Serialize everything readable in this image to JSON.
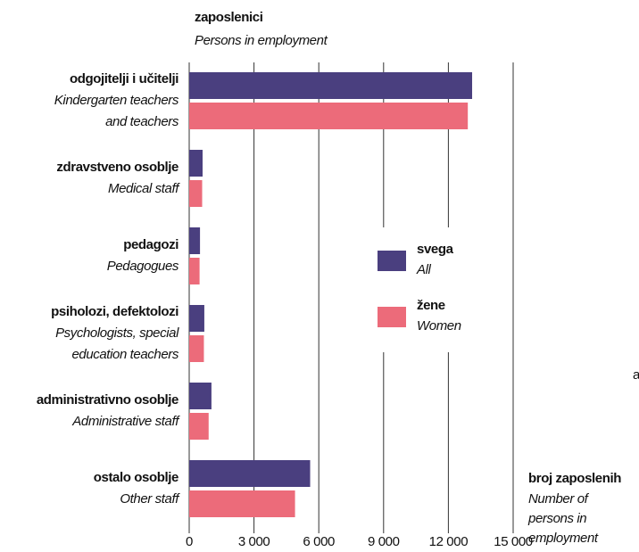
{
  "chart_data": {
    "type": "bar",
    "orientation": "horizontal",
    "title": "zaposlenici",
    "subtitle": "Persons in employment",
    "categories": [
      "odgojitelji i učitelji",
      "zdravstveno osoblje",
      "pedagozi",
      "psiholozi, defektolozi",
      "administrativno osoblje",
      "ostalo osoblje"
    ],
    "categories_en": [
      [
        "Kindergarten teachers",
        "and teachers"
      ],
      [
        "Medical staff"
      ],
      [
        "Pedagogues"
      ],
      [
        "Psychologists, special",
        "education teachers"
      ],
      [
        "Administrative staff"
      ],
      [
        "Other staff"
      ]
    ],
    "series": [
      {
        "name": "svega",
        "name_en": "All",
        "color": "#4a3f7f",
        "values": [
          13100,
          620,
          500,
          700,
          1030,
          5600
        ]
      },
      {
        "name": "žene",
        "name_en": "Women",
        "color": "#ec6b7a",
        "values": [
          12900,
          600,
          480,
          680,
          900,
          4900
        ]
      }
    ],
    "xlim": [
      0,
      15000
    ],
    "xticks": [
      0,
      {
        "value": 3000,
        "label": "3 000"
      },
      {
        "value": 6000,
        "label": "6 000"
      },
      {
        "value": 9000,
        "label": "9 000"
      },
      {
        "value": 12000,
        "label": "12 000"
      },
      {
        "value": 15000,
        "label": "15 000"
      }
    ],
    "x_label": "broj zaposlenih",
    "x_label_en": [
      "Number of",
      "persons in",
      "employment"
    ],
    "grid": true,
    "side_text": "a"
  }
}
